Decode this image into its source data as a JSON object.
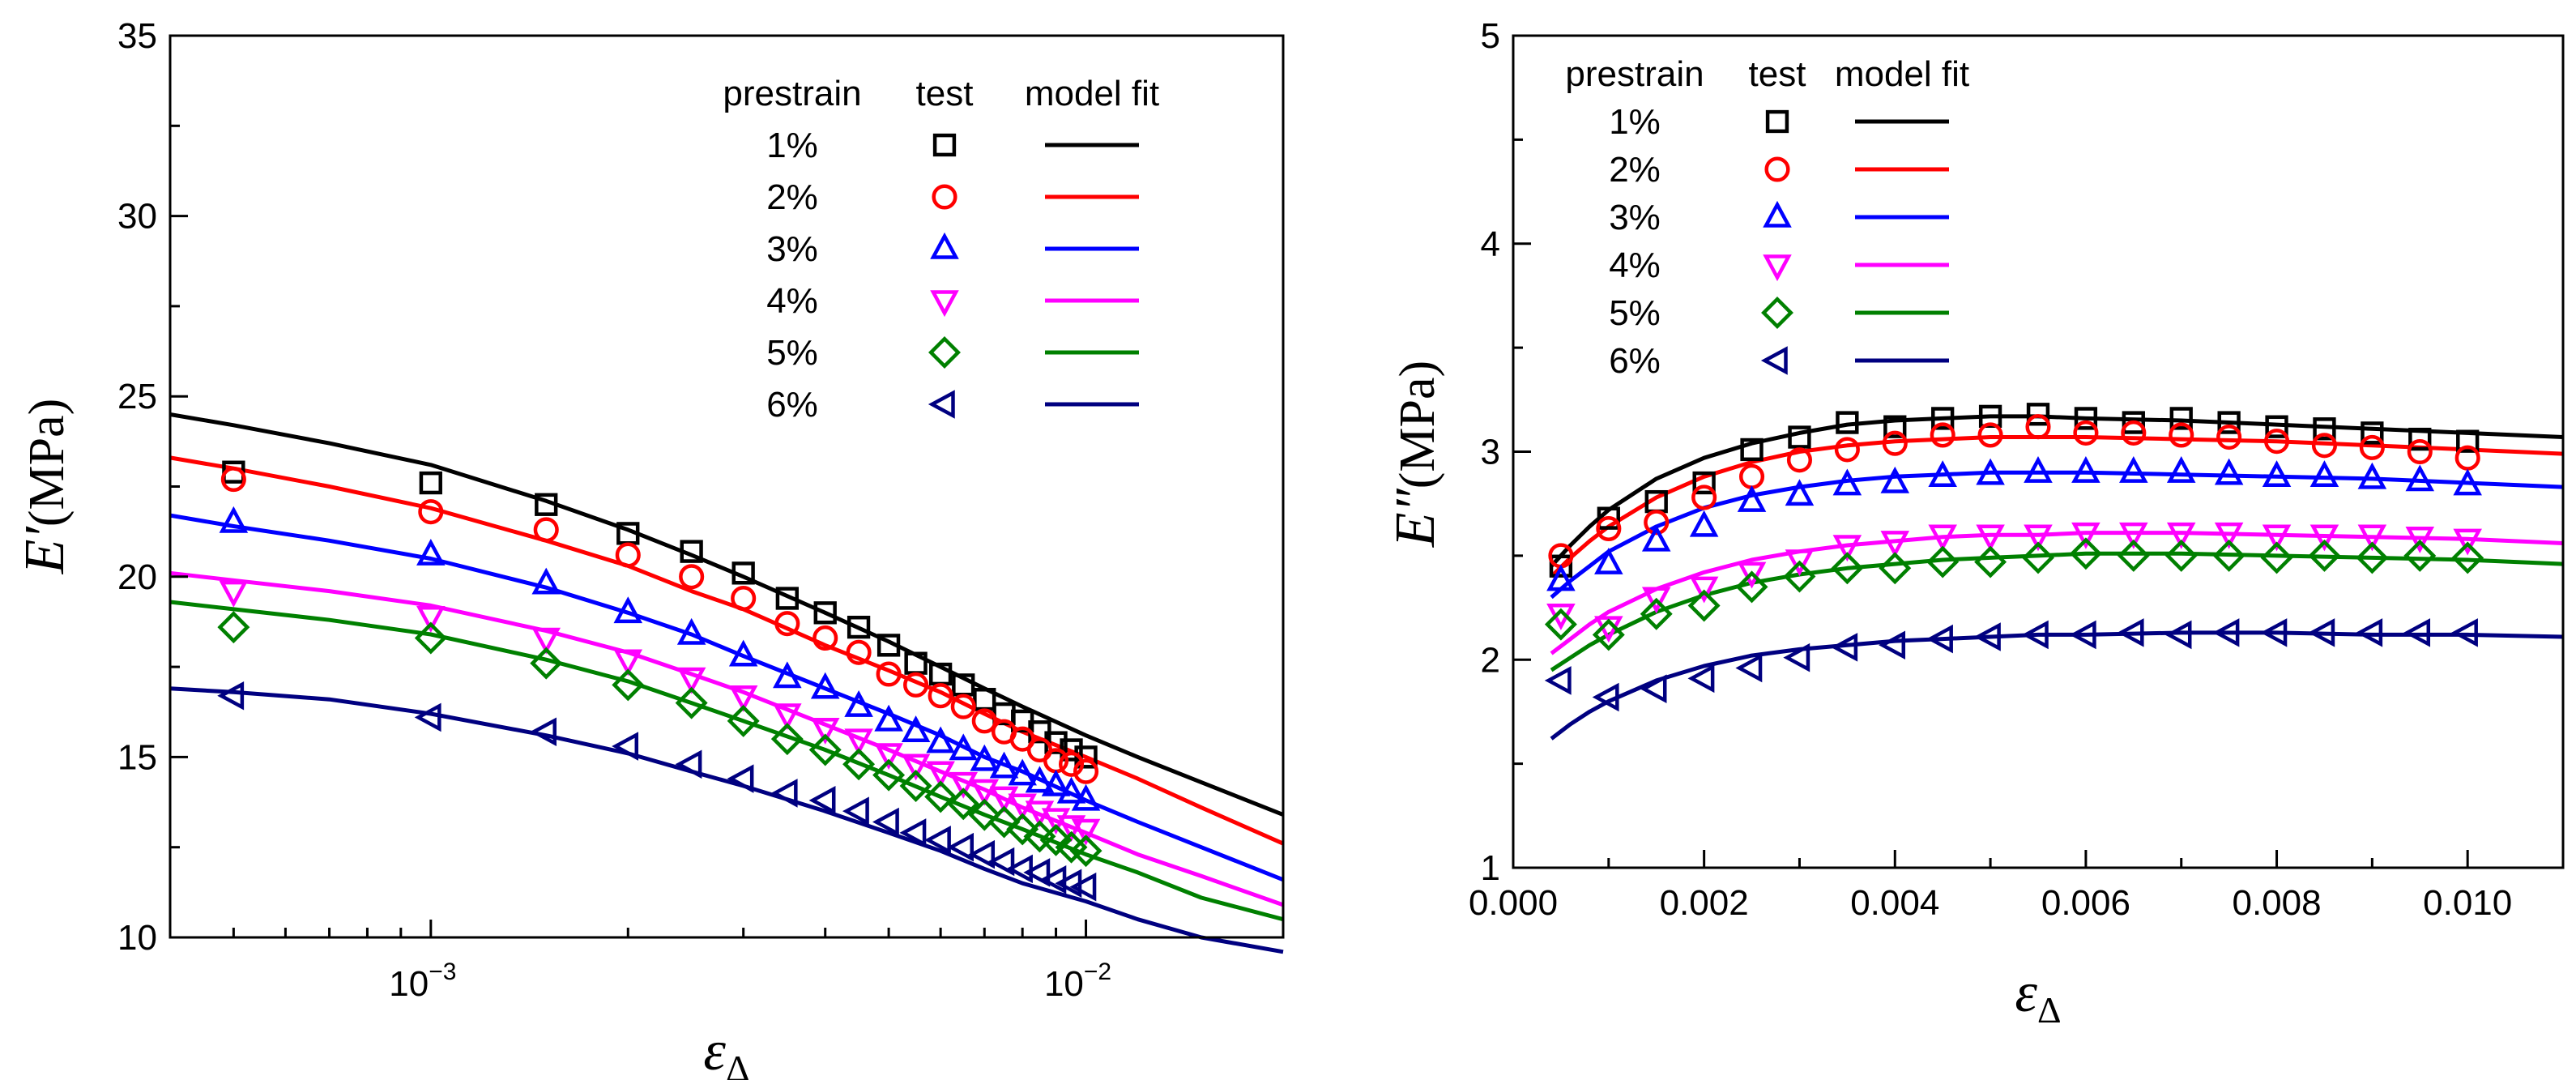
{
  "chart_data": [
    {
      "type": "scatter",
      "panel": "left",
      "xscale": "log",
      "xlim": [
        0.0004,
        0.02
      ],
      "ylim": [
        10,
        35
      ],
      "xticks": [
        {
          "value": 0.001,
          "base": "10",
          "exp": "−3"
        },
        {
          "value": 0.01,
          "base": "10",
          "exp": "−2"
        }
      ],
      "yticks": [
        "10",
        "15",
        "20",
        "25",
        "30",
        "35"
      ],
      "xlabel": {
        "symbol": "ε",
        "sub": "Δ"
      },
      "ylabel": {
        "symbol": "E′",
        "unit": "(MPa)"
      },
      "legend": {
        "headers": [
          "prestrain",
          "test",
          "model fit"
        ],
        "placement": "top-right"
      },
      "test_x": [
        0.0005,
        0.001,
        0.0015,
        0.002,
        0.0025,
        0.003,
        0.0035,
        0.004,
        0.0045,
        0.005,
        0.0055,
        0.006,
        0.0065,
        0.007,
        0.0075,
        0.008,
        0.0085,
        0.009,
        0.0095,
        0.01
      ],
      "fit_x": [
        0.0004,
        0.0005,
        0.0007,
        0.001,
        0.0015,
        0.002,
        0.0025,
        0.003,
        0.004,
        0.005,
        0.006,
        0.007,
        0.008,
        0.01,
        0.012,
        0.015,
        0.02
      ],
      "series": [
        {
          "name": "1%",
          "color": "#000000",
          "marker": "square",
          "test": [
            22.9,
            22.6,
            22.0,
            21.2,
            20.7,
            20.1,
            19.4,
            19.0,
            18.6,
            18.1,
            17.6,
            17.3,
            17.0,
            16.6,
            16.2,
            16.0,
            15.7,
            15.4,
            15.2,
            15.0
          ],
          "fit": [
            24.5,
            24.2,
            23.7,
            23.1,
            22.1,
            21.3,
            20.6,
            20.0,
            19.0,
            18.2,
            17.5,
            16.9,
            16.4,
            15.6,
            15.0,
            14.3,
            13.4
          ]
        },
        {
          "name": "2%",
          "color": "#ff0000",
          "marker": "circle",
          "test": [
            22.7,
            21.8,
            21.3,
            20.6,
            20.0,
            19.4,
            18.7,
            18.3,
            17.9,
            17.3,
            17.0,
            16.7,
            16.4,
            16.0,
            15.7,
            15.5,
            15.2,
            14.9,
            14.8,
            14.6
          ],
          "fit": [
            23.3,
            23.0,
            22.5,
            21.9,
            21.0,
            20.3,
            19.6,
            19.1,
            18.1,
            17.4,
            16.8,
            16.2,
            15.7,
            15.0,
            14.4,
            13.6,
            12.6
          ]
        },
        {
          "name": "3%",
          "color": "#0000ff",
          "marker": "triangle-up",
          "test": [
            21.5,
            20.6,
            19.8,
            19.0,
            18.4,
            17.8,
            17.2,
            16.9,
            16.4,
            16.0,
            15.7,
            15.4,
            15.2,
            14.9,
            14.7,
            14.5,
            14.3,
            14.2,
            14.0,
            13.8
          ],
          "fit": [
            21.7,
            21.4,
            21.0,
            20.5,
            19.7,
            19.0,
            18.4,
            17.8,
            16.9,
            16.2,
            15.6,
            15.0,
            14.6,
            13.8,
            13.2,
            12.5,
            11.6
          ]
        },
        {
          "name": "4%",
          "color": "#ff00ff",
          "marker": "triangle-down",
          "test": [
            19.6,
            18.9,
            18.3,
            17.7,
            17.2,
            16.7,
            16.2,
            15.8,
            15.5,
            15.1,
            14.8,
            14.6,
            14.3,
            14.1,
            13.9,
            13.7,
            13.5,
            13.3,
            13.1,
            13.0
          ],
          "fit": [
            20.1,
            19.9,
            19.6,
            19.2,
            18.5,
            17.9,
            17.3,
            16.8,
            15.9,
            15.2,
            14.6,
            14.1,
            13.6,
            12.9,
            12.3,
            11.7,
            10.9
          ]
        },
        {
          "name": "5%",
          "color": "#008000",
          "marker": "diamond",
          "test": [
            18.6,
            18.3,
            17.6,
            17.0,
            16.5,
            16.0,
            15.5,
            15.2,
            14.8,
            14.5,
            14.2,
            13.9,
            13.7,
            13.4,
            13.2,
            13.0,
            12.8,
            12.7,
            12.5,
            12.4
          ],
          "fit": [
            19.3,
            19.1,
            18.8,
            18.4,
            17.7,
            17.1,
            16.5,
            16.0,
            15.2,
            14.5,
            13.9,
            13.4,
            13.0,
            12.3,
            11.8,
            11.1,
            10.5
          ]
        },
        {
          "name": "6%",
          "color": "#000080",
          "marker": "triangle-left",
          "test": [
            16.7,
            16.1,
            15.7,
            15.3,
            14.8,
            14.4,
            14.0,
            13.8,
            13.5,
            13.2,
            12.9,
            12.7,
            12.5,
            12.3,
            12.1,
            11.9,
            11.8,
            11.6,
            11.5,
            11.4
          ],
          "fit": [
            16.9,
            16.8,
            16.6,
            16.2,
            15.6,
            15.1,
            14.6,
            14.2,
            13.5,
            12.9,
            12.4,
            11.9,
            11.5,
            11.0,
            10.5,
            10.0,
            9.6
          ]
        }
      ]
    },
    {
      "type": "scatter",
      "panel": "right",
      "xscale": "linear",
      "xlim": [
        0.0,
        0.011
      ],
      "ylim": [
        1,
        5
      ],
      "xticks": [
        {
          "value": 0.0,
          "label": "0.000"
        },
        {
          "value": 0.002,
          "label": "0.002"
        },
        {
          "value": 0.004,
          "label": "0.004"
        },
        {
          "value": 0.006,
          "label": "0.006"
        },
        {
          "value": 0.008,
          "label": "0.008"
        },
        {
          "value": 0.01,
          "label": "0.010"
        }
      ],
      "yticks": [
        "1",
        "2",
        "3",
        "4",
        "5"
      ],
      "xlabel": {
        "symbol": "ε",
        "sub": "Δ"
      },
      "ylabel": {
        "symbol": "E″",
        "unit": "(MPa)"
      },
      "legend": {
        "headers": [
          "prestrain",
          "test",
          "model fit"
        ],
        "placement": "top-left"
      },
      "test_x": [
        0.0005,
        0.001,
        0.0015,
        0.002,
        0.0025,
        0.003,
        0.0035,
        0.004,
        0.0045,
        0.005,
        0.0055,
        0.006,
        0.0065,
        0.007,
        0.0075,
        0.008,
        0.0085,
        0.009,
        0.0095,
        0.01
      ],
      "fit_x": [
        0.0004,
        0.0006,
        0.0008,
        0.001,
        0.0015,
        0.002,
        0.0025,
        0.003,
        0.0035,
        0.004,
        0.0045,
        0.005,
        0.0055,
        0.006,
        0.007,
        0.008,
        0.009,
        0.01,
        0.011
      ],
      "series": [
        {
          "name": "1%",
          "color": "#000000",
          "marker": "square",
          "test": [
            2.45,
            2.68,
            2.76,
            2.85,
            3.01,
            3.07,
            3.14,
            3.12,
            3.16,
            3.17,
            3.18,
            3.16,
            3.14,
            3.16,
            3.14,
            3.12,
            3.11,
            3.09,
            3.06,
            3.05
          ],
          "fit": [
            2.45,
            2.55,
            2.64,
            2.72,
            2.87,
            2.97,
            3.04,
            3.09,
            3.13,
            3.15,
            3.16,
            3.17,
            3.17,
            3.16,
            3.15,
            3.13,
            3.11,
            3.09,
            3.07
          ]
        },
        {
          "name": "2%",
          "color": "#ff0000",
          "marker": "circle",
          "test": [
            2.5,
            2.63,
            2.66,
            2.78,
            2.88,
            2.96,
            3.01,
            3.04,
            3.08,
            3.08,
            3.12,
            3.09,
            3.09,
            3.08,
            3.07,
            3.05,
            3.03,
            3.02,
            3.0,
            2.97
          ],
          "fit": [
            2.4,
            2.49,
            2.57,
            2.64,
            2.78,
            2.88,
            2.95,
            3.0,
            3.03,
            3.05,
            3.06,
            3.07,
            3.07,
            3.07,
            3.06,
            3.05,
            3.03,
            3.01,
            2.99
          ]
        },
        {
          "name": "3%",
          "color": "#0000ff",
          "marker": "triangle-up",
          "test": [
            2.38,
            2.46,
            2.57,
            2.64,
            2.76,
            2.79,
            2.84,
            2.85,
            2.88,
            2.89,
            2.9,
            2.9,
            2.9,
            2.9,
            2.89,
            2.88,
            2.88,
            2.87,
            2.86,
            2.84
          ],
          "fit": [
            2.3,
            2.38,
            2.45,
            2.52,
            2.64,
            2.73,
            2.79,
            2.83,
            2.86,
            2.88,
            2.89,
            2.9,
            2.9,
            2.9,
            2.89,
            2.88,
            2.87,
            2.85,
            2.83
          ]
        },
        {
          "name": "4%",
          "color": "#ff00ff",
          "marker": "triangle-down",
          "test": [
            2.22,
            2.16,
            2.3,
            2.35,
            2.42,
            2.48,
            2.55,
            2.57,
            2.6,
            2.6,
            2.6,
            2.61,
            2.61,
            2.61,
            2.61,
            2.6,
            2.6,
            2.6,
            2.59,
            2.58
          ],
          "fit": [
            2.03,
            2.1,
            2.17,
            2.23,
            2.34,
            2.42,
            2.48,
            2.52,
            2.55,
            2.57,
            2.59,
            2.6,
            2.6,
            2.61,
            2.61,
            2.6,
            2.59,
            2.58,
            2.56
          ]
        },
        {
          "name": "5%",
          "color": "#008000",
          "marker": "diamond",
          "test": [
            2.17,
            2.12,
            2.22,
            2.26,
            2.35,
            2.4,
            2.44,
            2.44,
            2.47,
            2.47,
            2.49,
            2.51,
            2.5,
            2.5,
            2.5,
            2.49,
            2.5,
            2.49,
            2.5,
            2.49
          ],
          "fit": [
            1.95,
            2.01,
            2.07,
            2.12,
            2.23,
            2.31,
            2.37,
            2.41,
            2.44,
            2.46,
            2.48,
            2.49,
            2.5,
            2.51,
            2.51,
            2.5,
            2.49,
            2.48,
            2.46
          ]
        },
        {
          "name": "6%",
          "color": "#000080",
          "marker": "triangle-left",
          "test": [
            1.9,
            1.82,
            1.86,
            1.91,
            1.96,
            2.01,
            2.06,
            2.07,
            2.1,
            2.11,
            2.12,
            2.12,
            2.13,
            2.12,
            2.13,
            2.13,
            2.13,
            2.13,
            2.13,
            2.13
          ],
          "fit": [
            1.62,
            1.69,
            1.75,
            1.8,
            1.9,
            1.97,
            2.02,
            2.05,
            2.07,
            2.09,
            2.1,
            2.11,
            2.12,
            2.12,
            2.13,
            2.13,
            2.12,
            2.12,
            2.11
          ]
        }
      ]
    }
  ]
}
